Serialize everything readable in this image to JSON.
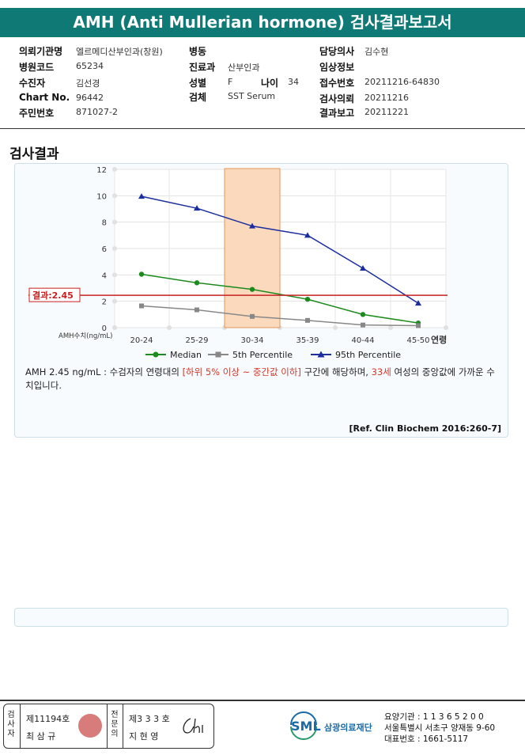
{
  "title": "AMH (Anti Mullerian hormone) 검사결과보고서",
  "info": {
    "col1": [
      {
        "label": "의뢰기관명",
        "value": "엘르메디산부인과(창원)"
      },
      {
        "label": "병원코드",
        "value": "65234"
      },
      {
        "label": "수진자",
        "value": "김선경"
      },
      {
        "label": "Chart No.",
        "value": "96442"
      },
      {
        "label": "주민번호",
        "value": "871027-2"
      }
    ],
    "col2": [
      {
        "label": "병동",
        "value": ""
      },
      {
        "label": "진료과",
        "value": "산부인과"
      },
      {
        "label": "성별",
        "value": "F"
      },
      {
        "label": "검체",
        "value": "SST Serum"
      }
    ],
    "age_label": "나이",
    "age_value": "34",
    "col3": [
      {
        "label": "담당의사",
        "value": "김수현"
      },
      {
        "label": "임상정보",
        "value": ""
      },
      {
        "label": "접수번호",
        "value": "20211216-64830"
      },
      {
        "label": "검사의뢰",
        "value": "20211216"
      },
      {
        "label": "결과보고",
        "value": "20211221"
      }
    ]
  },
  "section_title": "검사결과",
  "chart_data": {
    "type": "line",
    "categories": [
      "20-24",
      "25-29",
      "30-34",
      "35-39",
      "40-44",
      "45-50"
    ],
    "x_axis_unit_label": "연령",
    "y_axis_label": "AMH수치(ng/mL)",
    "ylim": [
      0,
      12
    ],
    "yticks": [
      0,
      2,
      4,
      6,
      8,
      10,
      12
    ],
    "highlight_category": "30-34",
    "result_line": {
      "label": "결과:2.45",
      "value": 2.45
    },
    "series": [
      {
        "name": "Median",
        "color": "#1d8a1d",
        "marker": "circle",
        "values": [
          4.05,
          3.4,
          2.9,
          2.15,
          1.0,
          0.35
        ]
      },
      {
        "name": "5th Percentile",
        "color": "#888888",
        "marker": "square",
        "values": [
          1.65,
          1.35,
          0.85,
          0.55,
          0.2,
          0.15
        ]
      },
      {
        "name": "95th Percentile",
        "color": "#1c2d9e",
        "marker": "triangle",
        "values": [
          9.95,
          9.05,
          7.7,
          7.0,
          4.5,
          1.85
        ]
      }
    ],
    "legend_position": "bottom",
    "grid": true
  },
  "description": {
    "part1": "AMH  2.45 ng/mL : 수검자의 연령대의 ",
    "highlight1": "[하위 5% 이상 ~ 중간값 이하]",
    "part2": " 구간에 해당하며, ",
    "highlight2": "33세",
    "part3": " 여성의 중앙값에 가까운 수치입니다."
  },
  "reference": "[Ref. Clin Biochem 2016:260-7]",
  "footer": {
    "box1_vertical": "검사자",
    "box1_number": "제11194호",
    "box1_name": "최 삼 규",
    "box2_vertical": "전문의",
    "box2_number": "제3 3 3 호",
    "box2_name": "지 현 영",
    "logo_text": "SML",
    "org_name": "삼광의료재단",
    "addr_line1": "요양기관 : 1 1 3 6 5 2 0 0",
    "addr_line2": "서울특별시 서초구 양재동 9-60",
    "addr_line3": "대표번호 : 1661-5117"
  }
}
